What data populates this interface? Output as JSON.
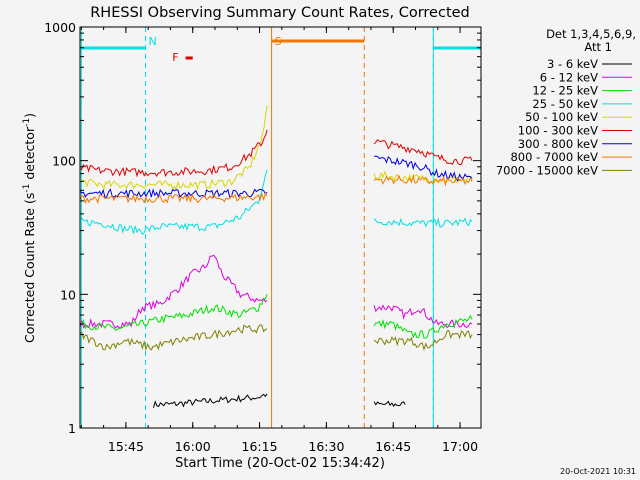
{
  "chart_data": {
    "type": "line",
    "title": "RHESSI Observing Summary Count Rates, Corrected",
    "xlabel": "Start Time (20-Oct-02 15:34:42)",
    "ylabel_main": "Corrected Count Rate (s",
    "ylabel_sup1": "-1",
    "ylabel_mid": " detector",
    "ylabel_sup2": "-1",
    "ylabel_end": ")",
    "yscale": "log",
    "ylim": [
      1,
      1000
    ],
    "xlim_minutes": [
      0,
      90
    ],
    "x_ticks": [
      {
        "label": "15:45",
        "t": 10.3
      },
      {
        "label": "16:00",
        "t": 25.3
      },
      {
        "label": "16:15",
        "t": 40.3
      },
      {
        "label": "16:30",
        "t": 55.3
      },
      {
        "label": "16:45",
        "t": 70.3
      },
      {
        "label": "17:00",
        "t": 85.3
      }
    ],
    "y_ticks": [
      {
        "label": "1",
        "v": 1
      },
      {
        "label": "10",
        "v": 10
      },
      {
        "label": "100",
        "v": 100
      },
      {
        "label": "1000",
        "v": 1000
      }
    ],
    "legend": {
      "placement": "right",
      "header1": "Det 1,3,4,5,6,9,",
      "header2": "Att 1"
    },
    "series": [
      {
        "name": "3 - 6 keV",
        "color": "#000000",
        "segments": [
          [
            [
              16.5,
              1.5
            ],
            [
              20,
              1.5
            ],
            [
              30,
              1.6
            ],
            [
              40,
              1.7
            ],
            [
              42,
              1.8
            ]
          ],
          [
            [
              66,
              1.5
            ],
            [
              70,
              1.5
            ],
            [
              73,
              1.5
            ]
          ]
        ]
      },
      {
        "name": "6 - 12 keV",
        "color": "#e000e0",
        "segments": [
          [
            [
              0,
              6
            ],
            [
              8,
              6
            ],
            [
              11.5,
              6
            ],
            [
              14,
              8
            ],
            [
              18,
              8.5
            ],
            [
              22,
              11
            ],
            [
              25,
              14
            ],
            [
              28,
              16
            ],
            [
              30,
              20
            ],
            [
              32,
              14
            ],
            [
              36,
              10
            ],
            [
              40,
              9
            ],
            [
              42,
              9
            ]
          ],
          [
            [
              66,
              8
            ],
            [
              70,
              8
            ],
            [
              73,
              7
            ],
            [
              76,
              8
            ],
            [
              80,
              6
            ],
            [
              84,
              6
            ],
            [
              88,
              6
            ]
          ]
        ]
      },
      {
        "name": "12 - 25 keV",
        "color": "#00e000",
        "segments": [
          [
            [
              0,
              6
            ],
            [
              8,
              5.5
            ],
            [
              14,
              6
            ],
            [
              18,
              6.5
            ],
            [
              24,
              7
            ],
            [
              30,
              8
            ],
            [
              36,
              7
            ],
            [
              40,
              8
            ],
            [
              42,
              10
            ]
          ],
          [
            [
              66,
              6
            ],
            [
              70,
              6
            ],
            [
              74,
              5
            ],
            [
              78,
              5
            ],
            [
              82,
              6
            ],
            [
              88,
              6.5
            ]
          ]
        ]
      },
      {
        "name": "25 - 50 keV",
        "color": "#00e0e0",
        "segments": [
          [
            [
              0,
              35
            ],
            [
              5,
              34
            ],
            [
              10,
              31
            ],
            [
              14,
              30
            ],
            [
              18,
              32
            ],
            [
              24,
              32
            ],
            [
              30,
              32
            ],
            [
              36,
              38
            ],
            [
              40,
              50
            ],
            [
              42,
              85
            ]
          ],
          [
            [
              66,
              35
            ],
            [
              70,
              35
            ],
            [
              76,
              34
            ],
            [
              82,
              34
            ],
            [
              88,
              35
            ]
          ]
        ]
      },
      {
        "name": "50 - 100 keV",
        "color": "#d8d800",
        "segments": [
          [
            [
              0,
              70
            ],
            [
              5,
              66
            ],
            [
              12,
              66
            ],
            [
              20,
              66
            ],
            [
              28,
              66
            ],
            [
              34,
              70
            ],
            [
              38,
              88
            ],
            [
              41,
              150
            ],
            [
              42,
              260
            ]
          ],
          [
            [
              66,
              78
            ],
            [
              70,
              76
            ],
            [
              76,
              74
            ],
            [
              82,
              72
            ],
            [
              88,
              72
            ]
          ]
        ]
      },
      {
        "name": "100 - 300 keV",
        "color": "#e00000",
        "segments": [
          [
            [
              0,
              88
            ],
            [
              5,
              84
            ],
            [
              12,
              82
            ],
            [
              20,
              82
            ],
            [
              28,
              84
            ],
            [
              34,
              90
            ],
            [
              38,
              110
            ],
            [
              41,
              140
            ],
            [
              42,
              170
            ]
          ],
          [
            [
              66,
              140
            ],
            [
              70,
              130
            ],
            [
              76,
              120
            ],
            [
              80,
              105
            ],
            [
              84,
              100
            ],
            [
              88,
              100
            ]
          ]
        ]
      },
      {
        "name": "300 - 800 keV",
        "color": "#0000e0",
        "segments": [
          [
            [
              0,
              57
            ],
            [
              8,
              57
            ],
            [
              16,
              57
            ],
            [
              24,
              57
            ],
            [
              32,
              57
            ],
            [
              38,
              57
            ],
            [
              42,
              58
            ]
          ],
          [
            [
              66,
              105
            ],
            [
              70,
              100
            ],
            [
              76,
              92
            ],
            [
              80,
              80
            ],
            [
              84,
              76
            ],
            [
              88,
              74
            ]
          ]
        ]
      },
      {
        "name": "800 - 7000 keV",
        "color": "#f07800",
        "segments": [
          [
            [
              0,
              52
            ],
            [
              6,
              52
            ],
            [
              12,
              52
            ],
            [
              20,
              52
            ],
            [
              28,
              52
            ],
            [
              36,
              53
            ],
            [
              42,
              54
            ]
          ],
          [
            [
              66,
              72
            ],
            [
              72,
              72
            ],
            [
              78,
              70
            ],
            [
              84,
              70
            ],
            [
              88,
              70
            ]
          ]
        ]
      },
      {
        "name": "7000 - 15000 keV",
        "color": "#808000",
        "segments": [
          [
            [
              0,
              5
            ],
            [
              6,
              4
            ],
            [
              10,
              4.5
            ],
            [
              16,
              4
            ],
            [
              22,
              4.5
            ],
            [
              30,
              5
            ],
            [
              36,
              5.5
            ],
            [
              42,
              5.5
            ]
          ],
          [
            [
              66,
              4.5
            ],
            [
              70,
              4.5
            ],
            [
              74,
              4.5
            ],
            [
              78,
              4
            ],
            [
              82,
              5
            ],
            [
              88,
              5
            ]
          ]
        ]
      }
    ],
    "annotations": [
      {
        "text": "N",
        "color": "#00e0e0",
        "t": 14.7,
        "type": "night-marker"
      },
      {
        "text": "F",
        "color": "#e00000",
        "t": 22.8,
        "type": "flare-marker"
      },
      {
        "text": "S",
        "color": "#f07800",
        "t": 43.0,
        "type": "saa-marker"
      }
    ],
    "night_bars": [
      [
        0,
        14.7
      ],
      [
        79.3,
        90
      ]
    ],
    "night_dashed_lines": [
      14.7,
      79.3,
      90
    ],
    "night_solid_lines": [
      0.3,
      79.3
    ],
    "saa_bar": [
      43.0,
      63.8
    ],
    "saa_lines": [
      43.0,
      63.8
    ],
    "flare_bar": [
      23.7,
      25.3
    ]
  },
  "footer": {
    "date_stamp": "20-Oct-2021 10:31"
  }
}
